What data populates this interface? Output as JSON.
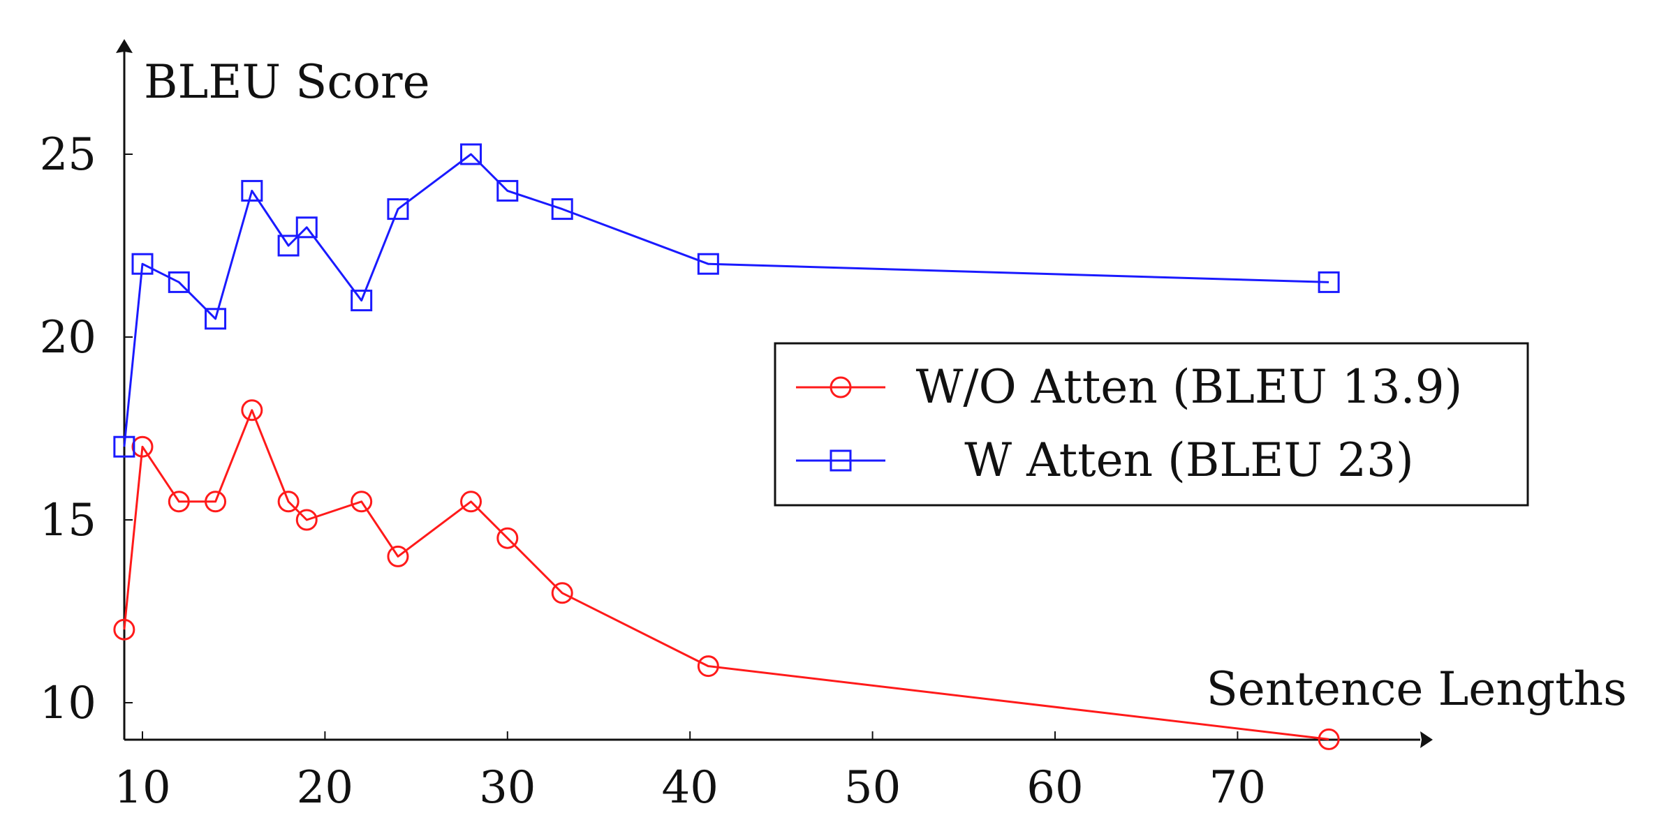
{
  "chart_data": {
    "type": "line",
    "title": "",
    "xlabel": "Sentence Lengths",
    "ylabel": "BLEU Score",
    "xlim": [
      9,
      80
    ],
    "ylim": [
      9,
      28
    ],
    "xticks": [
      10,
      20,
      30,
      40,
      50,
      60,
      70
    ],
    "yticks": [
      10,
      15,
      20,
      25
    ],
    "grid": false,
    "legend_position": "right",
    "series": [
      {
        "name": "W/O Atten (BLEU 13.9)",
        "marker": "circle",
        "color": "#ff1a1a",
        "x": [
          9,
          10,
          12,
          14,
          16,
          18,
          19,
          22,
          24,
          28,
          30,
          33,
          41,
          75
        ],
        "y": [
          12,
          17,
          15.5,
          15.5,
          18,
          15.5,
          15,
          15.5,
          14,
          15.5,
          14.5,
          13,
          11,
          9
        ]
      },
      {
        "name": "W Atten (BLEU 23)",
        "marker": "square",
        "color": "#1a1aff",
        "x": [
          9,
          10,
          12,
          14,
          16,
          18,
          19,
          22,
          24,
          28,
          30,
          33,
          41,
          75
        ],
        "y": [
          17,
          22,
          21.5,
          20.5,
          24,
          22.5,
          23,
          21,
          23.5,
          25,
          24,
          23.5,
          22,
          21.5
        ]
      }
    ]
  }
}
